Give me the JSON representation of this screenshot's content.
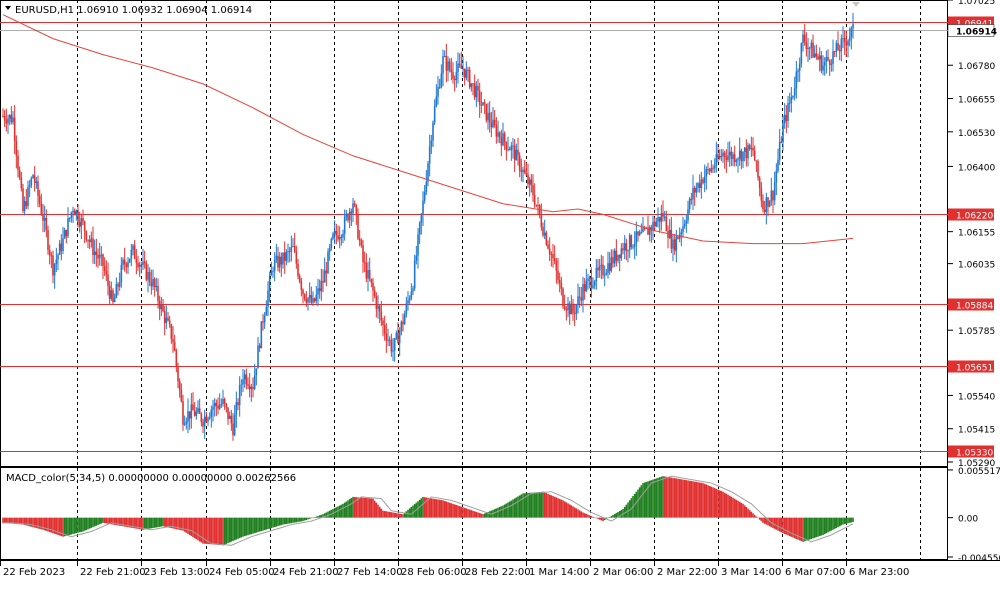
{
  "window": {
    "symbol_header": "EURUSD,H1  1.06910 1.06932 1.06904 1.06914",
    "macd_header": "MACD_color(5,34,5) 0.00000000 0.00000000 0.00262566"
  },
  "colors": {
    "bull": "#1f77d0",
    "bear": "#e03030",
    "ma": "#e8443a",
    "level_line": "#e03030",
    "macd_up": "#208020",
    "macd_down": "#e03030",
    "signal": "#a0a0a0",
    "grid": "#000000",
    "bid_line": "#b0b0b0"
  },
  "chart_data": [
    {
      "type": "candlestick",
      "symbol": "EURUSD",
      "timeframe": "H1",
      "ylim": [
        1.0529,
        1.07025
      ],
      "y_ticks": [
        "1.07025",
        "1.06780",
        "1.06655",
        "1.06530",
        "1.06400",
        "1.06155",
        "1.06035",
        "1.05785",
        "1.05540",
        "1.05415",
        "1.05290"
      ],
      "x_ticks": [
        "22 Feb 2023",
        "22 Feb 21:00",
        "23 Feb 13:00",
        "24 Feb 05:00",
        "24 Feb 21:00",
        "27 Feb 14:00",
        "28 Feb 06:00",
        "28 Feb 22:00",
        "1 Mar 14:00",
        "2 Mar 06:00",
        "2 Mar 22:00",
        "3 Mar 14:00",
        "6 Mar 07:00",
        "6 Mar 23:00"
      ],
      "horizontal_levels": [
        {
          "value": 1.06941,
          "label": "1.06941"
        },
        {
          "value": 1.0622,
          "label": "1.06220"
        },
        {
          "value": 1.05884,
          "label": "1.05884"
        },
        {
          "value": 1.05651,
          "label": "1.05651"
        },
        {
          "value": 1.0533,
          "label": "1.05330"
        }
      ],
      "current_price": {
        "value": 1.06914,
        "label": "1.06914"
      },
      "ohlc_last": {
        "open": 1.0691,
        "high": 1.06932,
        "low": 1.06904,
        "close": 1.06914
      },
      "close_anchors": [
        [
          0,
          1.0659
        ],
        [
          6,
          1.0658
        ],
        [
          12,
          1.0623
        ],
        [
          18,
          1.0637
        ],
        [
          24,
          1.0621
        ],
        [
          30,
          1.0602
        ],
        [
          36,
          1.0612
        ],
        [
          42,
          1.0625
        ],
        [
          48,
          1.0618
        ],
        [
          54,
          1.0609
        ],
        [
          60,
          1.0603
        ],
        [
          66,
          1.0588
        ],
        [
          72,
          1.0603
        ],
        [
          78,
          1.0608
        ],
        [
          84,
          1.0602
        ],
        [
          90,
          1.0596
        ],
        [
          96,
          1.0585
        ],
        [
          102,
          1.0575
        ],
        [
          108,
          1.0546
        ],
        [
          114,
          1.0548
        ],
        [
          120,
          1.0545
        ],
        [
          126,
          1.055
        ],
        [
          132,
          1.0551
        ],
        [
          138,
          1.0542
        ],
        [
          144,
          1.0562
        ],
        [
          150,
          1.0558
        ],
        [
          156,
          1.0583
        ],
        [
          162,
          1.0603
        ],
        [
          168,
          1.0605
        ],
        [
          174,
          1.0609
        ],
        [
          180,
          1.0593
        ],
        [
          186,
          1.0588
        ],
        [
          192,
          1.0597
        ],
        [
          198,
          1.0613
        ],
        [
          204,
          1.0617
        ],
        [
          210,
          1.0627
        ],
        [
          216,
          1.0604
        ],
        [
          222,
          1.0593
        ],
        [
          228,
          1.058
        ],
        [
          234,
          1.0571
        ],
        [
          240,
          1.0582
        ],
        [
          246,
          1.0597
        ],
        [
          252,
          1.0626
        ],
        [
          258,
          1.0658
        ],
        [
          264,
          1.068
        ],
        [
          270,
          1.0675
        ],
        [
          276,
          1.0677
        ],
        [
          282,
          1.067
        ],
        [
          288,
          1.0662
        ],
        [
          294,
          1.0655
        ],
        [
          300,
          1.065
        ],
        [
          306,
          1.0646
        ],
        [
          312,
          1.0638
        ],
        [
          318,
          1.063
        ],
        [
          324,
          1.0617
        ],
        [
          330,
          1.0605
        ],
        [
          336,
          1.059
        ],
        [
          342,
          1.0585
        ],
        [
          348,
          1.0594
        ],
        [
          354,
          1.0598
        ],
        [
          360,
          1.0601
        ],
        [
          366,
          1.0605
        ],
        [
          372,
          1.061
        ],
        [
          378,
          1.0612
        ],
        [
          384,
          1.0614
        ],
        [
          390,
          1.0618
        ],
        [
          396,
          1.0622
        ],
        [
          402,
          1.061
        ],
        [
          408,
          1.0618
        ],
        [
          414,
          1.063
        ],
        [
          420,
          1.0636
        ],
        [
          426,
          1.064
        ],
        [
          432,
          1.0645
        ],
        [
          438,
          1.0644
        ],
        [
          444,
          1.0645
        ],
        [
          450,
          1.0646
        ],
        [
          456,
          1.0625
        ],
        [
          462,
          1.063
        ],
        [
          468,
          1.0655
        ],
        [
          474,
          1.0668
        ],
        [
          480,
          1.0688
        ],
        [
          486,
          1.0683
        ],
        [
          492,
          1.0678
        ],
        [
          498,
          1.0682
        ],
        [
          504,
          1.0686
        ],
        [
          510,
          1.0691
        ]
      ],
      "moving_average": [
        [
          0,
          1.0697
        ],
        [
          30,
          1.0688
        ],
        [
          60,
          1.0682
        ],
        [
          90,
          1.0677
        ],
        [
          120,
          1.0671
        ],
        [
          150,
          1.0662
        ],
        [
          180,
          1.0652
        ],
        [
          210,
          1.0644
        ],
        [
          240,
          1.0638
        ],
        [
          270,
          1.0632
        ],
        [
          300,
          1.0626
        ],
        [
          330,
          1.0623
        ],
        [
          345,
          1.0624
        ],
        [
          360,
          1.0622
        ],
        [
          390,
          1.0616
        ],
        [
          420,
          1.0612
        ],
        [
          450,
          1.0611
        ],
        [
          480,
          1.0611
        ],
        [
          510,
          1.0613
        ]
      ]
    },
    {
      "type": "histogram",
      "name": "MACD_color(5,34,5)",
      "ylim": [
        -0.00455,
        0.00551
      ],
      "y_ticks": [
        "0.0055176",
        "0.00",
        "-0.0045502"
      ],
      "macd_anchors": [
        [
          0,
          -0.0006
        ],
        [
          12,
          -0.0008
        ],
        [
          24,
          -0.0014
        ],
        [
          36,
          -0.0022
        ],
        [
          48,
          -0.0016
        ],
        [
          60,
          -0.0006
        ],
        [
          72,
          -0.001
        ],
        [
          84,
          -0.0014
        ],
        [
          96,
          -0.001
        ],
        [
          108,
          -0.0015
        ],
        [
          120,
          -0.003
        ],
        [
          132,
          -0.0032
        ],
        [
          144,
          -0.0022
        ],
        [
          156,
          -0.0015
        ],
        [
          168,
          -0.0008
        ],
        [
          180,
          -0.0004
        ],
        [
          192,
          0.0004
        ],
        [
          204,
          0.0016
        ],
        [
          210,
          0.0024
        ],
        [
          222,
          0.0022
        ],
        [
          228,
          0.0008
        ],
        [
          240,
          0.0004
        ],
        [
          252,
          0.0024
        ],
        [
          264,
          0.002
        ],
        [
          276,
          0.0012
        ],
        [
          288,
          0.0004
        ],
        [
          300,
          0.0014
        ],
        [
          312,
          0.0028
        ],
        [
          324,
          0.003
        ],
        [
          336,
          0.002
        ],
        [
          348,
          0.0006
        ],
        [
          360,
          -0.0004
        ],
        [
          372,
          0.001
        ],
        [
          384,
          0.004
        ],
        [
          396,
          0.0048
        ],
        [
          408,
          0.0044
        ],
        [
          420,
          0.004
        ],
        [
          432,
          0.003
        ],
        [
          444,
          0.0016
        ],
        [
          456,
          -0.0006
        ],
        [
          468,
          -0.0018
        ],
        [
          480,
          -0.0028
        ],
        [
          492,
          -0.002
        ],
        [
          504,
          -0.0008
        ],
        [
          516,
          -0.0002
        ],
        [
          528,
          0.0002
        ],
        [
          540,
          0.0006
        ],
        [
          552,
          0.0012
        ],
        [
          564,
          0.0016
        ],
        [
          576,
          0.0006
        ],
        [
          588,
          0.0012
        ],
        [
          600,
          0.0024
        ],
        [
          612,
          0.003
        ],
        [
          624,
          0.0026
        ],
        [
          636,
          0.0026
        ],
        [
          648,
          0.0024
        ],
        [
          660,
          0.002
        ],
        [
          672,
          0.001
        ],
        [
          684,
          0.0004
        ],
        [
          696,
          0.0004
        ],
        [
          708,
          0.0002
        ],
        [
          720,
          0.0006
        ],
        [
          732,
          0.0014
        ],
        [
          744,
          0.0018
        ],
        [
          756,
          0.0016
        ],
        [
          768,
          0.0014
        ],
        [
          780,
          0.001
        ],
        [
          792,
          0.0018
        ],
        [
          804,
          0.0022
        ],
        [
          816,
          0.0016
        ],
        [
          828,
          0.0012
        ],
        [
          840,
          0.0016
        ],
        [
          852,
          0.002
        ]
      ]
    }
  ]
}
